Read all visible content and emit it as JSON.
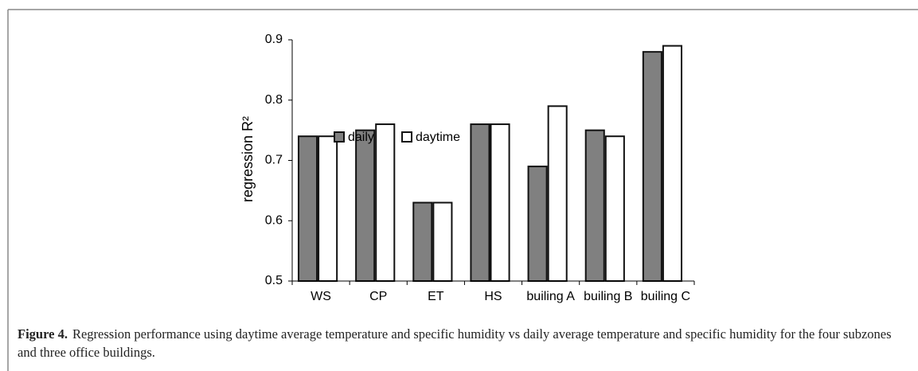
{
  "chart_data": {
    "type": "bar",
    "y_label": "regression R²",
    "categories": [
      "WS",
      "CP",
      "ET",
      "HS",
      "builing A",
      "builing B",
      "builing C"
    ],
    "series": [
      {
        "name": "daily",
        "color": "#808080",
        "values": [
          0.74,
          0.75,
          0.63,
          0.76,
          0.69,
          0.75,
          0.88
        ]
      },
      {
        "name": "daytime",
        "color": "#ffffff",
        "values": [
          0.74,
          0.76,
          0.63,
          0.76,
          0.79,
          0.74,
          0.89
        ]
      }
    ],
    "ylim": [
      0.5,
      0.9
    ],
    "yticks": [
      0.5,
      0.6,
      0.7,
      0.8,
      0.9
    ],
    "grid": false
  },
  "caption": {
    "label": "Figure 4.",
    "text": "Regression performance using daytime average temperature and specific humidity vs daily average temperature and specific humidity for the four subzones and three office buildings."
  }
}
